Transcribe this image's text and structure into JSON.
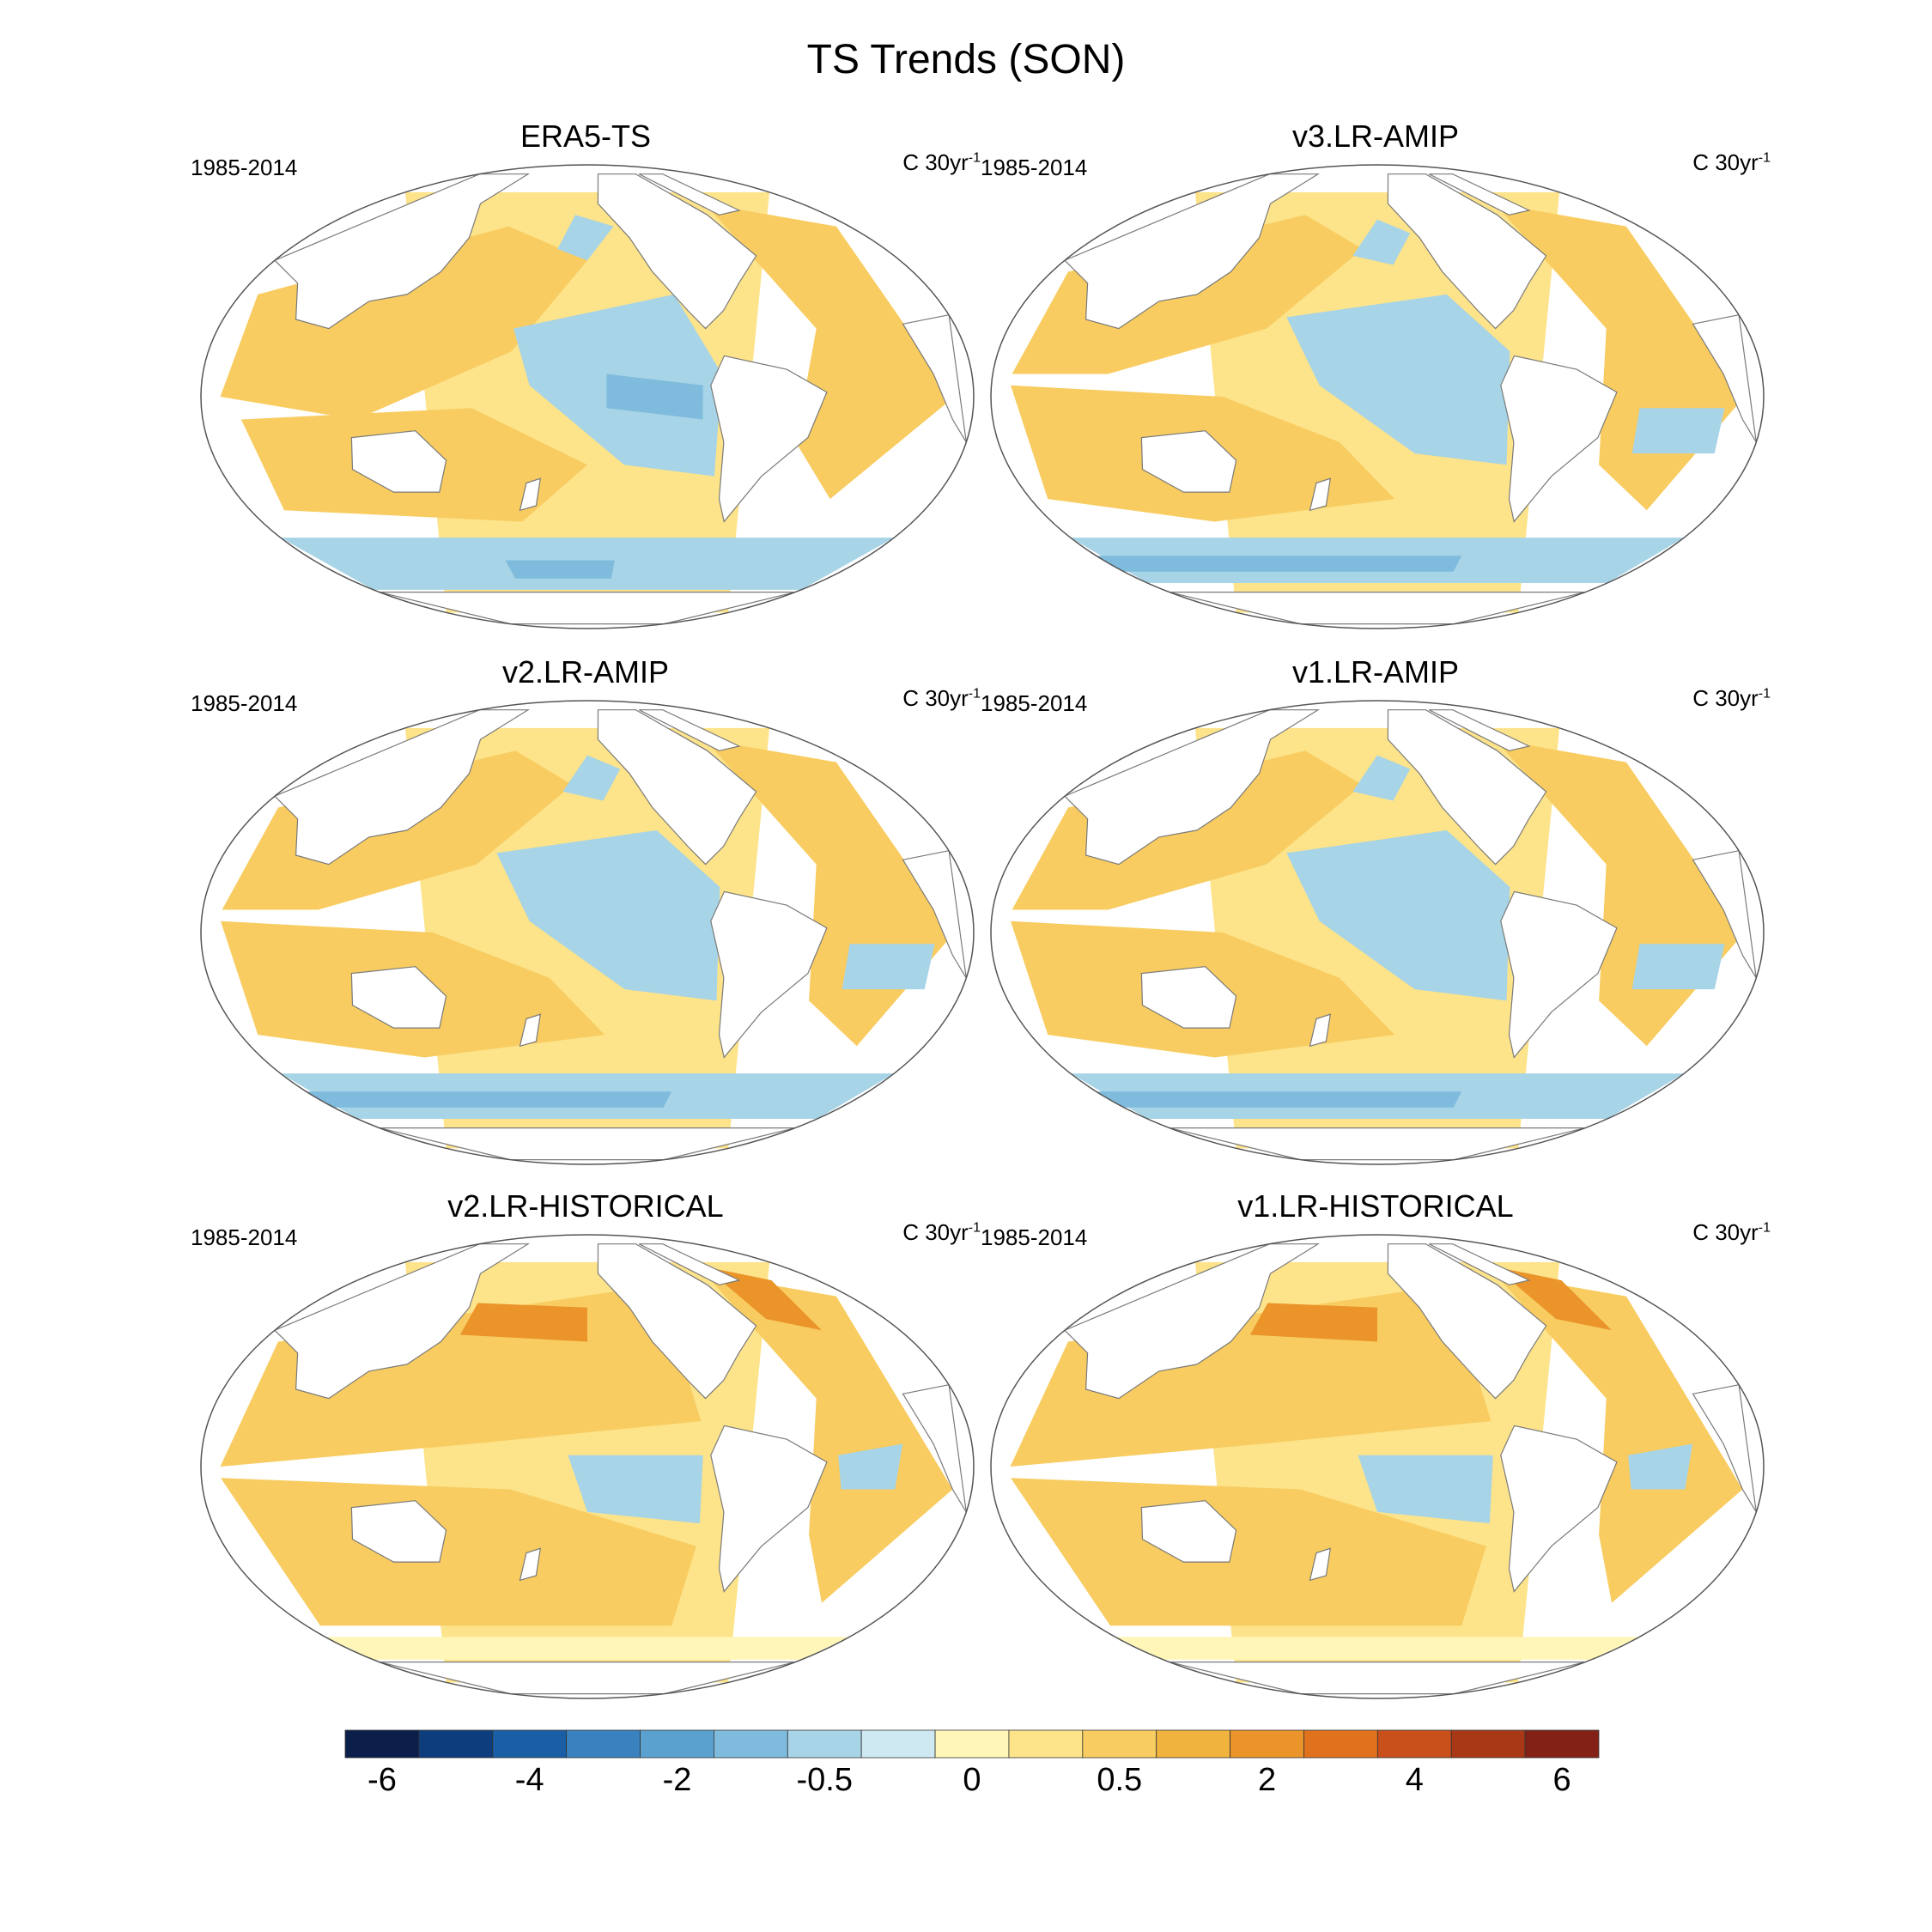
{
  "title": "TS Trends (SON)",
  "panels": [
    {
      "title": "ERA5-TS",
      "period": "1985-2014",
      "units_base": "C 30yr",
      "units_exp": "-1",
      "pattern": "era5"
    },
    {
      "title": "v3.LR-AMIP",
      "period": "1985-2014",
      "units_base": "C 30yr",
      "units_exp": "-1",
      "pattern": "amip"
    },
    {
      "title": "v2.LR-AMIP",
      "period": "1985-2014",
      "units_base": "C 30yr",
      "units_exp": "-1",
      "pattern": "amip"
    },
    {
      "title": "v1.LR-AMIP",
      "period": "1985-2014",
      "units_base": "C 30yr",
      "units_exp": "-1",
      "pattern": "amip"
    },
    {
      "title": "v2.LR-HISTORICAL",
      "period": "1985-2014",
      "units_base": "C 30yr",
      "units_exp": "-1",
      "pattern": "hist"
    },
    {
      "title": "v1.LR-HISTORICAL",
      "period": "1985-2014",
      "units_base": "C 30yr",
      "units_exp": "-1",
      "pattern": "hist"
    }
  ],
  "colorbar": {
    "colors": [
      "#0b1f4a",
      "#0e3d7d",
      "#1a5fa6",
      "#3a82bf",
      "#5aa1d0",
      "#7fbbdd",
      "#a7d4e6",
      "#cfe9f3",
      "#fff6b8",
      "#fde38a",
      "#f8cc60",
      "#f0b43e",
      "#ea942a",
      "#e0711d",
      "#c9501a",
      "#a93816",
      "#832117"
    ],
    "tick_labels": [
      "-6",
      "-4",
      "-2",
      "-0.5",
      "0",
      "0.5",
      "2",
      "4",
      "6"
    ],
    "tick_boundary_index": [
      1,
      3,
      5,
      7,
      9,
      11,
      13,
      15,
      17
    ]
  },
  "map_colors": {
    "ocean_warm": "#f8cc60",
    "ocean_light": "#fde38a",
    "ocean_pale": "#fff6b8",
    "ocean_cool": "#a7d4e6",
    "ocean_cold": "#7fbbdd",
    "ocean_hot": "#ea942a",
    "land": "#ffffff",
    "coast": "#7a7a7a"
  }
}
